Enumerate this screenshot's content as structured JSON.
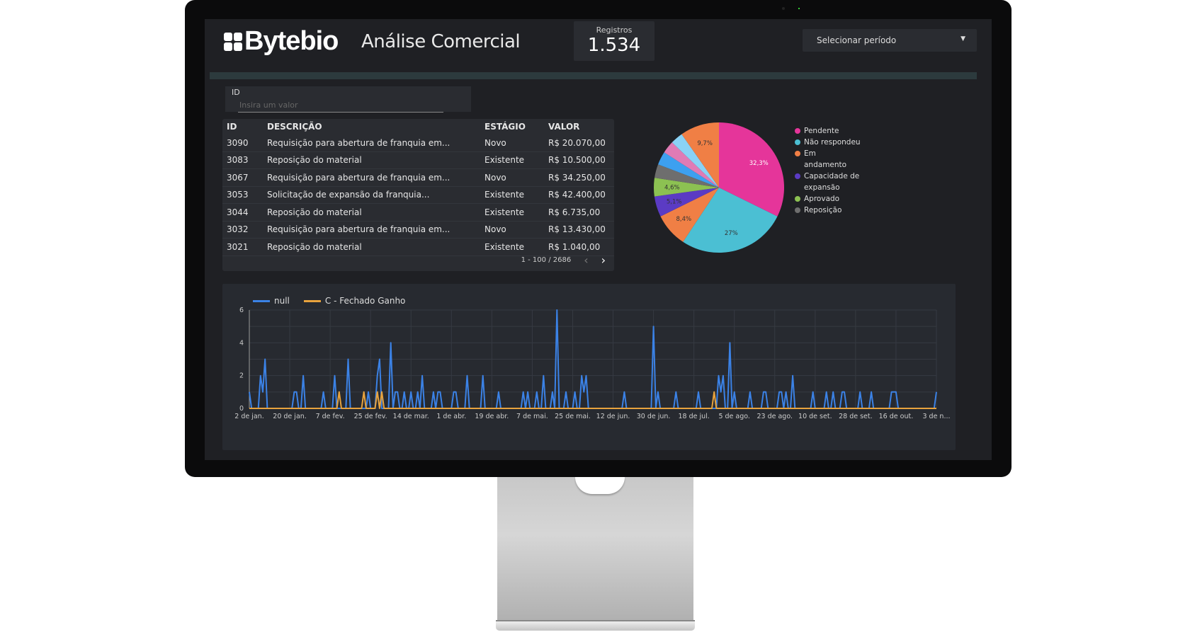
{
  "header": {
    "logo": "Bytebio",
    "title": "Análise Comercial",
    "kpi_label": "Registros",
    "kpi_value": "1.534",
    "period_select": "Selecionar período"
  },
  "filter": {
    "label": "ID",
    "placeholder": "Insira um valor"
  },
  "table": {
    "headers": [
      "ID",
      "DESCRIÇÃO",
      "ESTÁGIO",
      "VALOR"
    ],
    "rows": [
      [
        "3090",
        "Requisição para abertura de franquia em...",
        "Novo",
        "R$ 20.070,00"
      ],
      [
        "3083",
        "Reposição do material",
        "Existente",
        "R$ 10.500,00"
      ],
      [
        "3067",
        "Requisição para abertura de franquia em...",
        "Novo",
        "R$ 34.250,00"
      ],
      [
        "3053",
        "Solicitação de expansão da franquia...",
        "Existente",
        "R$ 42.400,00"
      ],
      [
        "3044",
        "Reposição do material",
        "Existente",
        "R$ 6.735,00"
      ],
      [
        "3032",
        "Requisição para abertura de franquia em...",
        "Novo",
        "R$ 13.430,00"
      ],
      [
        "3021",
        "Reposição do material",
        "Existente",
        "R$ 1.040,00"
      ]
    ],
    "pagination": "1 - 100 / 2686"
  },
  "chart_data": [
    {
      "type": "pie",
      "slices": [
        {
          "name": "Pendente",
          "value": 32.3,
          "label": "32,3%",
          "color": "#e5359a",
          "legend": true
        },
        {
          "name": "Não respondeu",
          "value": 27,
          "label": "27%",
          "color": "#4bbfd3",
          "legend": true
        },
        {
          "name": "Em andamento",
          "value": 8.4,
          "label": "8,4%",
          "color": "#f07f45",
          "legend": true
        },
        {
          "name": "Capacidade de expansão",
          "value": 5.1,
          "label": "5,1%",
          "color": "#5b3bc4",
          "legend": true
        },
        {
          "name": "Aprovado",
          "value": 4.6,
          "label": "4,6%",
          "color": "#8cc152",
          "legend": true
        },
        {
          "name": "Reposição",
          "value": 3.4,
          "label": "",
          "color": "#6e6e6e",
          "legend": true
        },
        {
          "name": "",
          "value": 3.3,
          "label": "",
          "color": "#3da0f0",
          "legend": false
        },
        {
          "name": "",
          "value": 3.1,
          "label": "",
          "color": "#e07bb5",
          "legend": false
        },
        {
          "name": "",
          "value": 3.1,
          "label": "",
          "color": "#8ad2f5",
          "legend": false
        },
        {
          "name": "",
          "value": 9.7,
          "label": "9,7%",
          "color": "#f07f45",
          "legend": false
        }
      ]
    },
    {
      "type": "line",
      "x_unit": "days since 2 de jan.",
      "xlim": [
        0,
        306
      ],
      "ylim": [
        0,
        6
      ],
      "yticks": [
        0,
        2,
        4,
        6
      ],
      "xticks": [
        {
          "day": 0,
          "label": "2 de jan."
        },
        {
          "day": 18,
          "label": "20 de jan."
        },
        {
          "day": 36,
          "label": "7 de fev."
        },
        {
          "day": 54,
          "label": "25 de fev."
        },
        {
          "day": 72,
          "label": "14 de mar."
        },
        {
          "day": 90,
          "label": "1 de abr."
        },
        {
          "day": 108,
          "label": "19 de abr."
        },
        {
          "day": 126,
          "label": "7 de mai."
        },
        {
          "day": 144,
          "label": "25 de mai."
        },
        {
          "day": 162,
          "label": "12 de jun."
        },
        {
          "day": 180,
          "label": "30 de jun."
        },
        {
          "day": 198,
          "label": "18 de jul."
        },
        {
          "day": 216,
          "label": "5 de ago."
        },
        {
          "day": 234,
          "label": "23 de ago."
        },
        {
          "day": 252,
          "label": "10 de set."
        },
        {
          "day": 270,
          "label": "28 de set."
        },
        {
          "day": 288,
          "label": "16 de out."
        },
        {
          "day": 306,
          "label": "3 de n..."
        }
      ],
      "series": [
        {
          "name": "null",
          "color": "#3b82e6",
          "nonzero": [
            [
              0,
              1
            ],
            [
              5,
              2
            ],
            [
              6,
              1
            ],
            [
              7,
              3
            ],
            [
              20,
              1
            ],
            [
              21,
              1
            ],
            [
              24,
              2
            ],
            [
              33,
              1
            ],
            [
              38,
              2
            ],
            [
              44,
              3
            ],
            [
              53,
              1
            ],
            [
              57,
              2
            ],
            [
              58,
              3
            ],
            [
              63,
              4
            ],
            [
              65,
              1
            ],
            [
              66,
              1
            ],
            [
              69,
              1
            ],
            [
              72,
              1
            ],
            [
              75,
              1
            ],
            [
              77,
              2
            ],
            [
              82,
              1
            ],
            [
              84,
              1
            ],
            [
              85,
              1
            ],
            [
              91,
              1
            ],
            [
              92,
              1
            ],
            [
              97,
              2
            ],
            [
              104,
              2
            ],
            [
              111,
              1
            ],
            [
              122,
              1
            ],
            [
              124,
              1
            ],
            [
              128,
              1
            ],
            [
              131,
              2
            ],
            [
              135,
              1
            ],
            [
              137,
              6
            ],
            [
              141,
              1
            ],
            [
              145,
              1
            ],
            [
              148,
              2
            ],
            [
              149,
              1
            ],
            [
              150,
              2
            ],
            [
              167,
              1
            ],
            [
              180,
              5
            ],
            [
              182,
              1
            ],
            [
              190,
              1
            ],
            [
              200,
              1
            ],
            [
              209,
              2
            ],
            [
              210,
              1
            ],
            [
              211,
              2
            ],
            [
              214,
              4
            ],
            [
              216,
              1
            ],
            [
              223,
              1
            ],
            [
              229,
              1
            ],
            [
              230,
              1
            ],
            [
              236,
              1
            ],
            [
              237,
              1
            ],
            [
              239,
              1
            ],
            [
              242,
              2
            ],
            [
              251,
              1
            ],
            [
              257,
              1
            ],
            [
              260,
              1
            ],
            [
              264,
              1
            ],
            [
              265,
              1
            ],
            [
              272,
              1
            ],
            [
              277,
              1
            ],
            [
              286,
              1
            ],
            [
              287,
              1
            ],
            [
              288,
              1
            ],
            [
              306,
              1
            ]
          ]
        },
        {
          "name": "C - Fechado Ganho",
          "color": "#e8a33d",
          "nonzero": [
            [
              40,
              1
            ],
            [
              51,
              1
            ],
            [
              57,
              1
            ],
            [
              59,
              1
            ],
            [
              207,
              1
            ]
          ]
        }
      ]
    }
  ]
}
